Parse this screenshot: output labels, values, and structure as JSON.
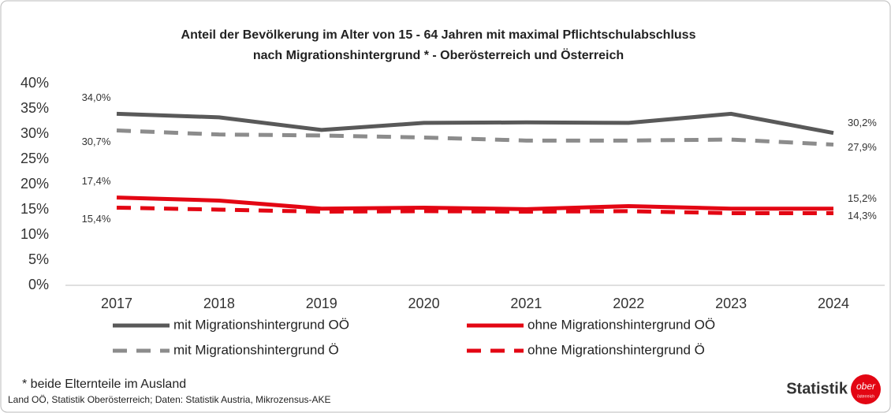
{
  "chart_data": {
    "type": "line",
    "title": [
      "Anteil der Bevölkerung im Alter von 15 - 64 Jahren mit maximal Pflichtschulabschluss",
      "nach Migrationshintergrund * - Oberösterreich und Österreich"
    ],
    "categories": [
      "2017",
      "2018",
      "2019",
      "2020",
      "2021",
      "2022",
      "2023",
      "2024"
    ],
    "series": [
      {
        "name": "mit Migrationshintergrund OÖ",
        "color": "#595959",
        "dash": false,
        "values": [
          34.0,
          33.3,
          30.8,
          32.2,
          32.3,
          32.2,
          34.0,
          30.2
        ],
        "value_labels": [
          "34,0%",
          null,
          null,
          null,
          null,
          null,
          null,
          "30,2%"
        ]
      },
      {
        "name": "ohne Migrationshintergrund OÖ",
        "color": "#e30613",
        "dash": false,
        "values": [
          17.4,
          16.8,
          15.2,
          15.4,
          15.1,
          15.7,
          15.2,
          15.2
        ],
        "value_labels": [
          "17,4%",
          null,
          null,
          null,
          null,
          null,
          null,
          "15,2%"
        ]
      },
      {
        "name": "mit Migrationshintergrund Ö",
        "color": "#8c8c8c",
        "dash": true,
        "values": [
          30.7,
          29.9,
          29.7,
          29.3,
          28.7,
          28.7,
          28.9,
          27.9
        ],
        "value_labels": [
          "30,7%",
          null,
          null,
          null,
          null,
          null,
          null,
          "27,9%"
        ]
      },
      {
        "name": "ohne Migrationshintergrund Ö",
        "color": "#e30613",
        "dash": true,
        "values": [
          15.4,
          15.0,
          14.6,
          14.7,
          14.6,
          14.7,
          14.3,
          14.3
        ],
        "value_labels": [
          "15,4%",
          null,
          null,
          null,
          null,
          null,
          null,
          "14,3%"
        ]
      }
    ],
    "ylim": [
      0,
      40
    ],
    "yticks": [
      {
        "value": 0,
        "label": "0%"
      },
      {
        "value": 5,
        "label": "5%"
      },
      {
        "value": 10,
        "label": "10%"
      },
      {
        "value": 15,
        "label": "15%"
      },
      {
        "value": 20,
        "label": "20%"
      },
      {
        "value": 25,
        "label": "25%"
      },
      {
        "value": 30,
        "label": "30%"
      },
      {
        "value": 35,
        "label": "35%"
      },
      {
        "value": 40,
        "label": "40%"
      }
    ],
    "grid": false,
    "footnote": "* beide Elternteile im Ausland",
    "source": "Land OÖ, Statistik Oberösterreich; Daten: Statistik Austria, Mikrozensus-AKE",
    "logo": {
      "text": "Statistik",
      "badge": "ober",
      "badge_sub": "österreich"
    }
  }
}
